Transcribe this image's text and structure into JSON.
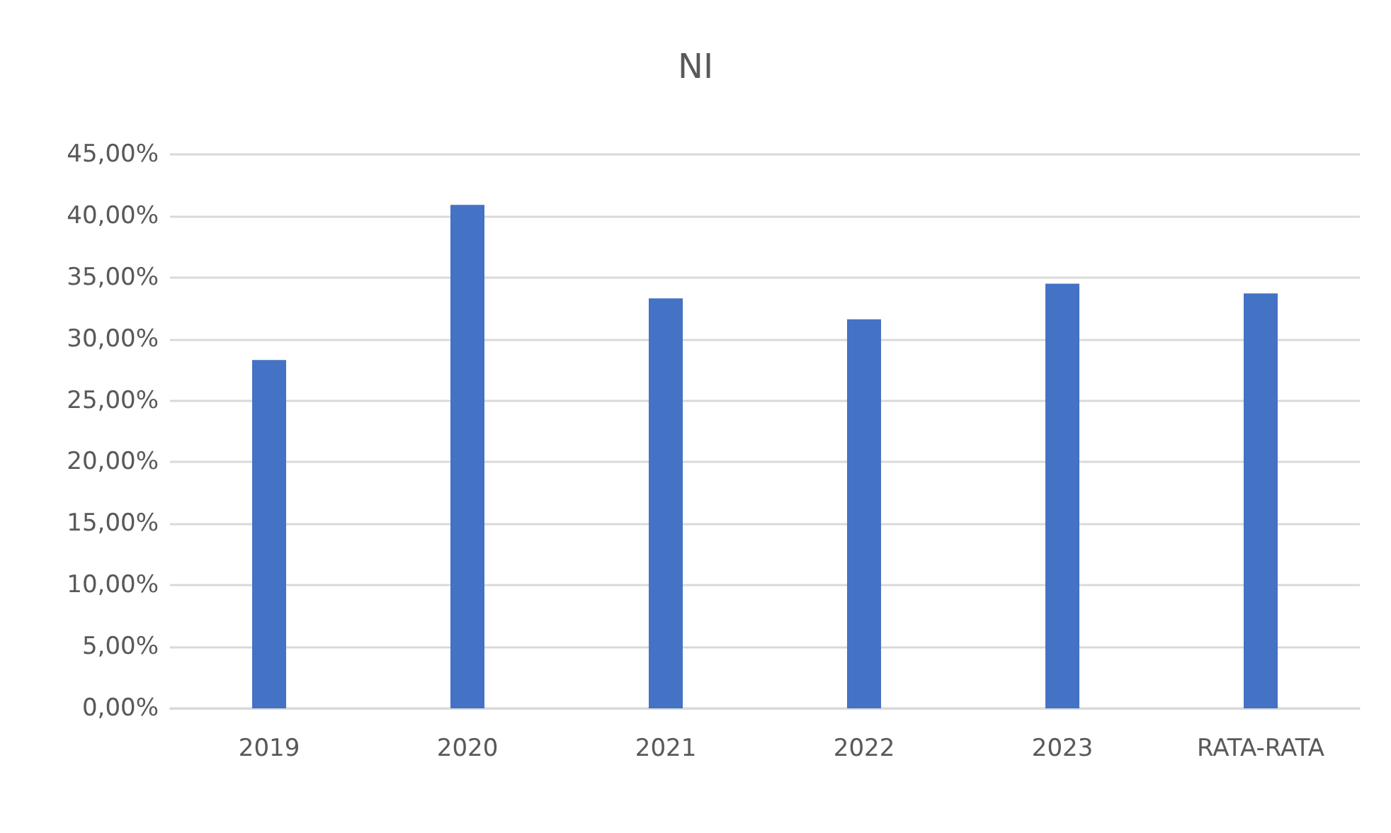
{
  "chart_data": {
    "type": "bar",
    "title": "NI",
    "categories": [
      "2019",
      "2020",
      "2021",
      "2022",
      "2023",
      "RATA-RATA"
    ],
    "values": [
      28.3,
      40.9,
      33.3,
      31.6,
      34.5,
      33.7
    ],
    "color": "#4472c4",
    "ylim": [
      0,
      45
    ],
    "yticks": [
      {
        "value": 0,
        "label": "0,00%"
      },
      {
        "value": 5,
        "label": "5,00%"
      },
      {
        "value": 10,
        "label": "10,00%"
      },
      {
        "value": 15,
        "label": "15,00%"
      },
      {
        "value": 20,
        "label": "20,00%"
      },
      {
        "value": 25,
        "label": "25,00%"
      },
      {
        "value": 30,
        "label": "30,00%"
      },
      {
        "value": 35,
        "label": "35,00%"
      },
      {
        "value": 40,
        "label": "40,00%"
      },
      {
        "value": 45,
        "label": "45,00%"
      }
    ],
    "grid": "y"
  }
}
